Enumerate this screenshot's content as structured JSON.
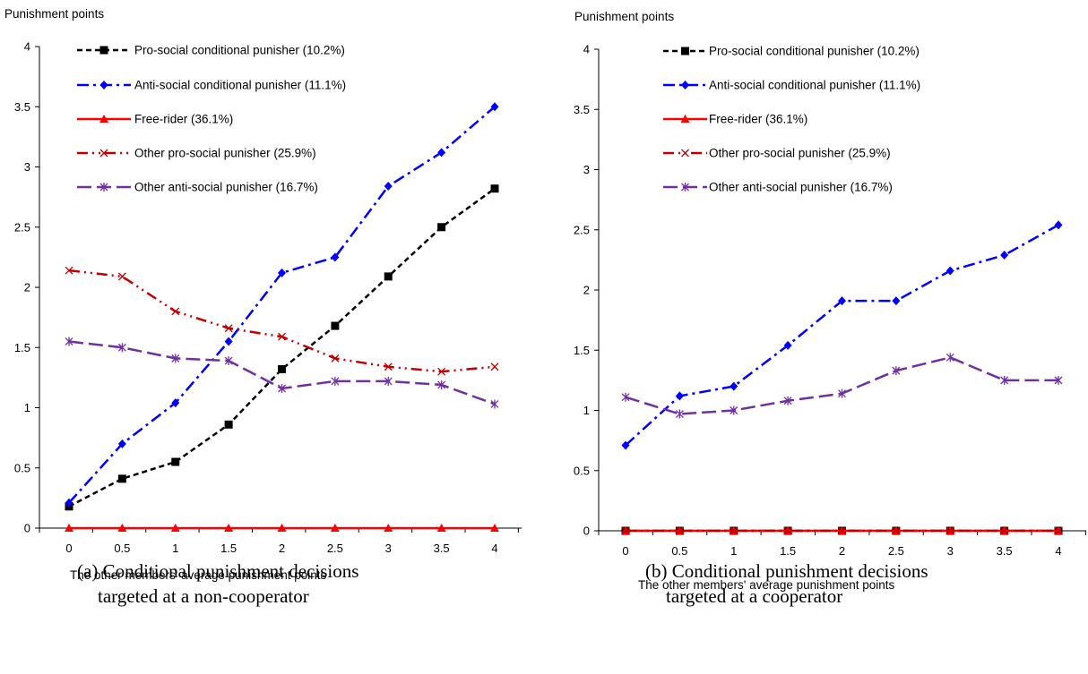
{
  "chart_data": [
    {
      "type": "line",
      "ylabel": "Punishment points",
      "xlabel": "The other members' average punishment points",
      "caption": [
        "(a) Conditional punishment decisions",
        "targeted at a non-cooperator"
      ],
      "x": [
        0,
        0.5,
        1,
        1.5,
        2,
        2.5,
        3,
        3.5,
        4
      ],
      "x_ticks": [
        "0",
        "0.5",
        "1",
        "1.5",
        "2",
        "2.5",
        "3",
        "3.5",
        "4"
      ],
      "y_ticks": [
        "0",
        "0.5",
        "1",
        "1.5",
        "2",
        "2.5",
        "3",
        "3.5",
        "4"
      ],
      "ylim": [
        0,
        4
      ],
      "grid": false,
      "legend_position": "top-left",
      "series": [
        {
          "name": "Pro-social conditional punisher (10.2%)",
          "color": "#000000",
          "dash": "short-dash",
          "marker": "square",
          "values": [
            0.18,
            0.41,
            0.55,
            0.86,
            1.32,
            1.68,
            2.09,
            2.5,
            2.82
          ]
        },
        {
          "name": "Anti-social conditional punisher (11.1%)",
          "color": "#0000ff",
          "dash": "dash-dot",
          "marker": "diamond",
          "values": [
            0.21,
            0.7,
            1.04,
            1.55,
            2.12,
            2.25,
            2.84,
            3.12,
            3.5
          ]
        },
        {
          "name": "Free-rider (36.1%)",
          "color": "#ff0000",
          "dash": "solid",
          "marker": "triangle",
          "values": [
            0,
            0,
            0,
            0,
            0,
            0,
            0,
            0,
            0
          ]
        },
        {
          "name": "Other pro-social punisher (25.9%)",
          "color": "#c00000",
          "dash": "dash-dot-dot",
          "marker": "x",
          "values": [
            2.14,
            2.09,
            1.8,
            1.66,
            1.59,
            1.41,
            1.34,
            1.3,
            1.34
          ]
        },
        {
          "name": "Other anti-social punisher (16.7%)",
          "color": "#7030a0",
          "dash": "long-dash",
          "marker": "asterisk",
          "values": [
            1.55,
            1.5,
            1.41,
            1.39,
            1.16,
            1.22,
            1.22,
            1.19,
            1.03
          ]
        }
      ]
    },
    {
      "type": "line",
      "ylabel": "Punishment points",
      "xlabel": "The other members' average punishment points",
      "caption": [
        "(b) Conditional punishment decisions",
        "targeted at a cooperator"
      ],
      "x": [
        0,
        0.5,
        1,
        1.5,
        2,
        2.5,
        3,
        3.5,
        4
      ],
      "x_ticks": [
        "0",
        "0.5",
        "1",
        "1.5",
        "2",
        "2.5",
        "3",
        "3.5",
        "4"
      ],
      "y_ticks": [
        "0",
        "0.5",
        "1",
        "1.5",
        "2",
        "2.5",
        "3",
        "3.5",
        "4"
      ],
      "ylim": [
        0,
        4
      ],
      "grid": false,
      "legend_position": "top-left",
      "series": [
        {
          "name": "Pro-social conditional punisher (10.2%)",
          "color": "#000000",
          "dash": "short-dash",
          "marker": "square",
          "values": [
            0,
            0,
            0,
            0,
            0,
            0,
            0,
            0,
            0
          ]
        },
        {
          "name": "Anti-social conditional punisher (11.1%)",
          "color": "#0000ff",
          "dash": "dash-dot",
          "marker": "diamond",
          "values": [
            0.71,
            1.12,
            1.2,
            1.54,
            1.91,
            1.91,
            2.16,
            2.29,
            2.54
          ]
        },
        {
          "name": "Free-rider (36.1%)",
          "color": "#ff0000",
          "dash": "solid",
          "marker": "triangle",
          "values": [
            0,
            0,
            0,
            0,
            0,
            0,
            0,
            0,
            0
          ]
        },
        {
          "name": "Other pro-social punisher (25.9%)",
          "color": "#c00000",
          "dash": "dash-dot-dot",
          "marker": "x",
          "values": [
            0,
            0,
            0,
            0,
            0,
            0,
            0,
            0,
            0
          ]
        },
        {
          "name": "Other anti-social punisher (16.7%)",
          "color": "#7030a0",
          "dash": "long-dash",
          "marker": "asterisk",
          "values": [
            1.11,
            0.97,
            1.0,
            1.08,
            1.14,
            1.33,
            1.44,
            1.25,
            1.25
          ]
        }
      ]
    }
  ]
}
